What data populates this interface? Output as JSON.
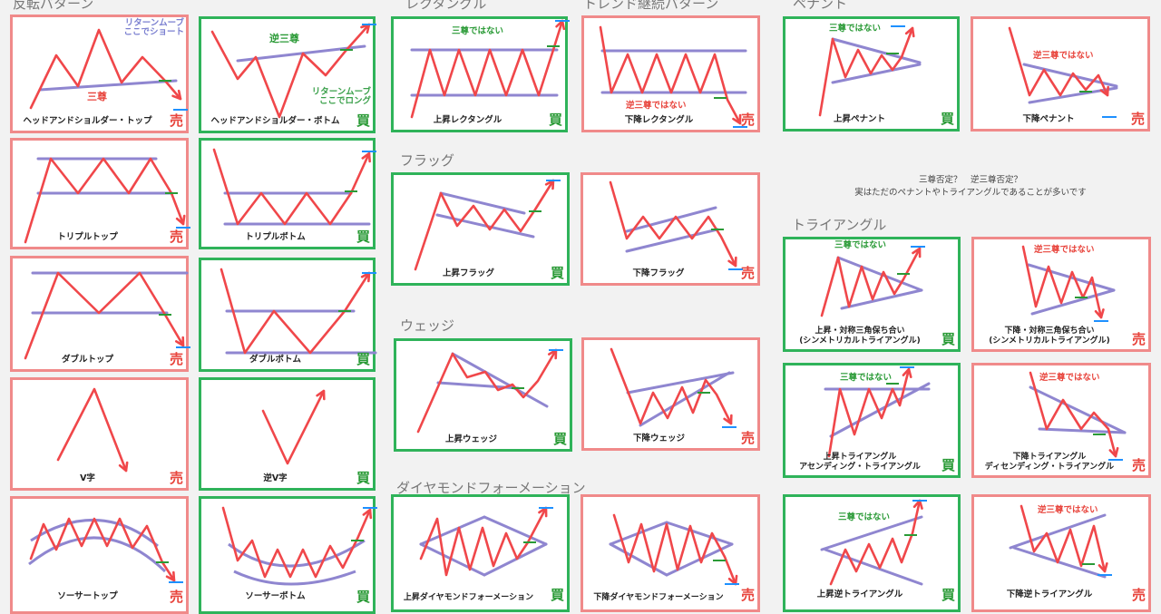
{
  "sections": {
    "reversal": "反転パターン",
    "rectangle": "レクタングル",
    "continuation": "トレンド継続パターン",
    "pennant": "ペナント",
    "flag": "フラッグ",
    "wedge": "ウェッジ",
    "diamond": "ダイヤモンドフォーメーション",
    "triangle": "トライアングル"
  },
  "center_note": {
    "line1": "三尊否定？　逆三尊否定？",
    "line2": "実はただのペナントやトライアングルであることが多いです"
  },
  "badges": {
    "sell": "売",
    "buy": "買"
  },
  "colors": {
    "price": "#f0474a",
    "channel": "#8f86d0",
    "sell_border": "#f08a8a",
    "buy_border": "#2fb35a",
    "target": "#1e90ff",
    "stop": "#2a9a36"
  },
  "cards": {
    "hs_top": {
      "caption": "ヘッドアンドショルダー・トップ",
      "note1": "三尊",
      "note2": "リターンムーブ\nここでショート"
    },
    "hs_bottom": {
      "caption": "ヘッドアンドショルダー・ボトム",
      "note1": "逆三尊",
      "note2": "リターンムーブ\nここでロング"
    },
    "triple_top": {
      "caption": "トリプルトップ"
    },
    "triple_bottom": {
      "caption": "トリプルボトム"
    },
    "double_top": {
      "caption": "ダブルトップ"
    },
    "double_bottom": {
      "caption": "ダブルボトム"
    },
    "v_top": {
      "caption": "V字"
    },
    "v_bottom": {
      "caption": "逆V字"
    },
    "saucer_top": {
      "caption": "ソーサートップ"
    },
    "saucer_bottom": {
      "caption": "ソーサーボトム"
    },
    "rect_up": {
      "caption": "上昇レクタングル",
      "note1": "三尊ではない"
    },
    "rect_down": {
      "caption": "下降レクタングル",
      "note1": "逆三尊ではない"
    },
    "flag_up": {
      "caption": "上昇フラッグ"
    },
    "flag_down": {
      "caption": "下降フラッグ"
    },
    "wedge_up": {
      "caption": "上昇ウェッジ"
    },
    "wedge_down": {
      "caption": "下降ウェッジ"
    },
    "diamond_up": {
      "caption": "上昇ダイヤモンドフォーメーション"
    },
    "diamond_down": {
      "caption": "下降ダイヤモンドフォーメーション"
    },
    "pennant_up": {
      "caption": "上昇ペナント",
      "note1": "三尊ではない"
    },
    "pennant_down": {
      "caption": "下降ペナント",
      "note1": "逆三尊ではない"
    },
    "sym_up": {
      "caption": "上昇・対称三角保ち合い\n(シンメトリカルトライアングル)",
      "note1": "三尊ではない"
    },
    "sym_down": {
      "caption": "下降・対称三角保ち合い\n(シンメトリカルトライアングル)",
      "note1": "逆三尊ではない"
    },
    "asc": {
      "caption": "上昇トライアングル\nアセンディング・トライアングル",
      "note1": "三尊ではない"
    },
    "desc": {
      "caption": "下降トライアングル\nディセンディング・トライアングル",
      "note1": "逆三尊ではない"
    },
    "rev_up": {
      "caption": "上昇逆トライアングル",
      "note1": "三尊ではない"
    },
    "rev_down": {
      "caption": "下降逆トライアングル",
      "note1": "逆三尊ではない"
    }
  }
}
